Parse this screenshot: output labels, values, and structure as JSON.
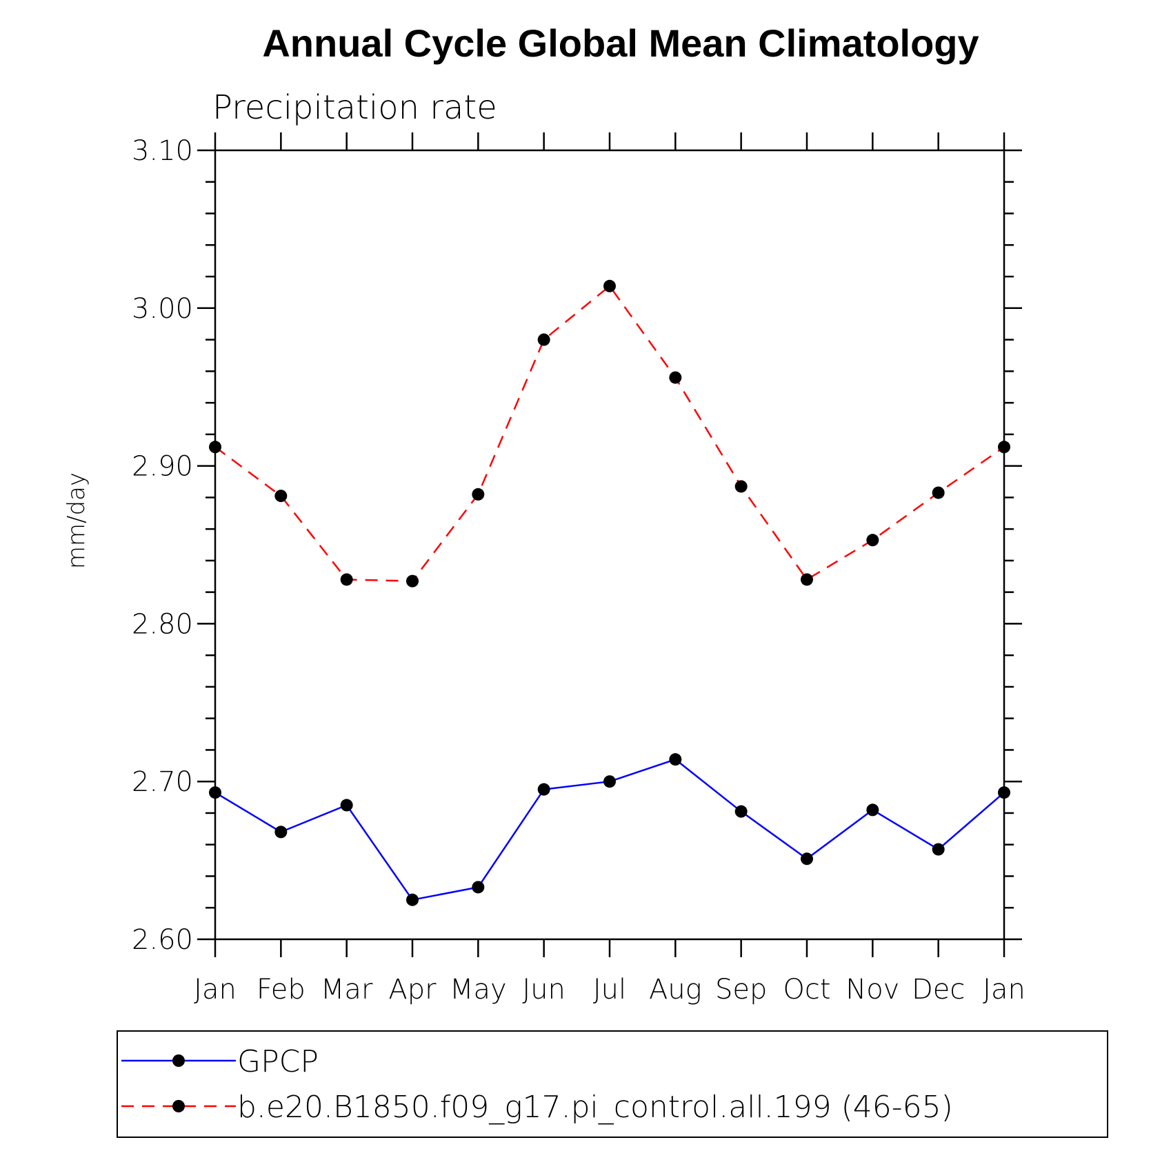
{
  "chart_data": {
    "type": "line",
    "title": "Annual Cycle Global Mean Climatology",
    "subtitle": "Precipitation rate",
    "ylabel": "mm/day",
    "xlabel": "",
    "categories": [
      "Jan",
      "Feb",
      "Mar",
      "Apr",
      "May",
      "Jun",
      "Jul",
      "Aug",
      "Sep",
      "Oct",
      "Nov",
      "Dec",
      "Jan"
    ],
    "ylim": [
      2.6,
      3.1
    ],
    "yticks": [
      "2.60",
      "2.70",
      "2.80",
      "2.90",
      "3.00",
      "3.10"
    ],
    "grid": false,
    "legend_position": "bottom",
    "series": [
      {
        "name": "GPCP",
        "color": "#0000ff",
        "line_style": "solid",
        "marker": "filled-circle",
        "values": [
          2.693,
          2.668,
          2.685,
          2.625,
          2.633,
          2.695,
          2.7,
          2.714,
          2.681,
          2.651,
          2.682,
          2.657,
          2.693
        ]
      },
      {
        "name": "b.e20.B1850.f09_g17.pi_control.all.199 (46-65)",
        "color": "#ff0000",
        "line_style": "dashed",
        "marker": "filled-circle",
        "values": [
          2.912,
          2.881,
          2.828,
          2.827,
          2.882,
          2.98,
          3.014,
          2.956,
          2.887,
          2.828,
          2.853,
          2.883,
          2.912
        ]
      }
    ]
  }
}
